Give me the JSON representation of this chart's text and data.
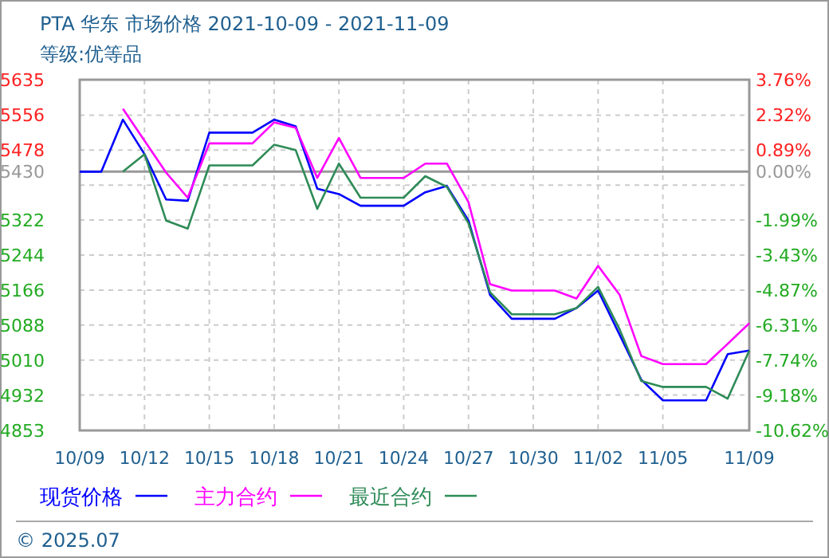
{
  "chart_data": {
    "type": "line",
    "title": "PTA 华东 市场价格 2021-10-09 - 2021-11-09",
    "subtitle": "等级:优等品",
    "x": [
      "2021-10-09",
      "2021-10-10",
      "2021-10-11",
      "2021-10-12",
      "2021-10-13",
      "2021-10-14",
      "2021-10-15",
      "2021-10-16",
      "2021-10-17",
      "2021-10-18",
      "2021-10-19",
      "2021-10-20",
      "2021-10-21",
      "2021-10-22",
      "2021-10-23",
      "2021-10-24",
      "2021-10-25",
      "2021-10-26",
      "2021-10-27",
      "2021-10-28",
      "2021-10-29",
      "2021-10-30",
      "2021-10-31",
      "2021-11-01",
      "2021-11-02",
      "2021-11-03",
      "2021-11-04",
      "2021-11-05",
      "2021-11-06",
      "2021-11-07",
      "2021-11-08",
      "2021-11-09"
    ],
    "xlim": [
      "2021-10-09",
      "2021-11-09"
    ],
    "xticks": [
      {
        "value": "2021-10-09",
        "label": "10/09"
      },
      {
        "value": "2021-10-12",
        "label": "10/12"
      },
      {
        "value": "2021-10-15",
        "label": "10/15"
      },
      {
        "value": "2021-10-18",
        "label": "10/18"
      },
      {
        "value": "2021-10-21",
        "label": "10/21"
      },
      {
        "value": "2021-10-24",
        "label": "10/24"
      },
      {
        "value": "2021-10-27",
        "label": "10/27"
      },
      {
        "value": "2021-10-30",
        "label": "10/30"
      },
      {
        "value": "2021-11-02",
        "label": "11/02"
      },
      {
        "value": "2021-11-05",
        "label": "11/05"
      },
      {
        "value": "2021-11-09",
        "label": "11/09"
      }
    ],
    "ylim": [
      4853,
      5635
    ],
    "yticks": [
      5635,
      5556,
      5478,
      5430,
      {
        "value": 5400,
        "label": null
      },
      5322,
      5244,
      5166,
      5088,
      5010,
      4932,
      4853
    ],
    "y2lim": [
      -10.62,
      3.76
    ],
    "y2ticks": [
      {
        "value": 3.76,
        "label": "3.76%"
      },
      {
        "value": 2.32,
        "label": "2.32%"
      },
      {
        "value": 0.89,
        "label": "0.89%"
      },
      {
        "value": 0,
        "label": "0.00%"
      },
      {
        "value": -0.55,
        "label": null
      },
      {
        "value": -1.99,
        "label": "-1.99%"
      },
      {
        "value": -3.43,
        "label": "-3.43%"
      },
      {
        "value": -4.87,
        "label": "-4.87%"
      },
      {
        "value": -6.31,
        "label": "-6.31%"
      },
      {
        "value": -7.74,
        "label": "-7.74%"
      },
      {
        "value": -9.18,
        "label": "-9.18%"
      },
      {
        "value": -10.62,
        "label": "-10.62%"
      }
    ],
    "series": [
      {
        "name": "现货价格",
        "color": "#0000ff",
        "values": [
          5430,
          5430,
          5546,
          5469,
          5368,
          5365,
          5517,
          5517,
          5517,
          5546,
          5531,
          5392,
          5380,
          5354,
          5354,
          5354,
          5384,
          5398,
          5321,
          5155,
          5102,
          5102,
          5102,
          5126,
          5165,
          5066,
          4966,
          4920,
          4920,
          4920,
          5023,
          5031
        ]
      },
      {
        "name": "主力合约",
        "color": "#ff00ff",
        "values": [
          null,
          null,
          5570,
          5499,
          5428,
          5372,
          5493,
          5493,
          5493,
          5540,
          5528,
          5416,
          5505,
          5416,
          5416,
          5416,
          5448,
          5448,
          5362,
          5179,
          5165,
          5165,
          5165,
          5147,
          5220,
          5155,
          5019,
          5001,
          5001,
          5001,
          5046,
          5092
        ]
      },
      {
        "name": "最近合约",
        "color": "#2e8b57",
        "values": [
          null,
          null,
          5430,
          5469,
          5321,
          5303,
          5444,
          5444,
          5444,
          5490,
          5478,
          5347,
          5448,
          5372,
          5372,
          5372,
          5420,
          5396,
          5315,
          5161,
          5112,
          5112,
          5112,
          5126,
          5173,
          5078,
          4963,
          4950,
          4950,
          4950,
          4924,
          5031
        ]
      }
    ],
    "ref_lines": [
      {
        "axis": "y",
        "value": 5430,
        "color": "#999999"
      }
    ],
    "grid": true,
    "legend": "bottom",
    "annotations": [
      "© 2025.07"
    ]
  }
}
